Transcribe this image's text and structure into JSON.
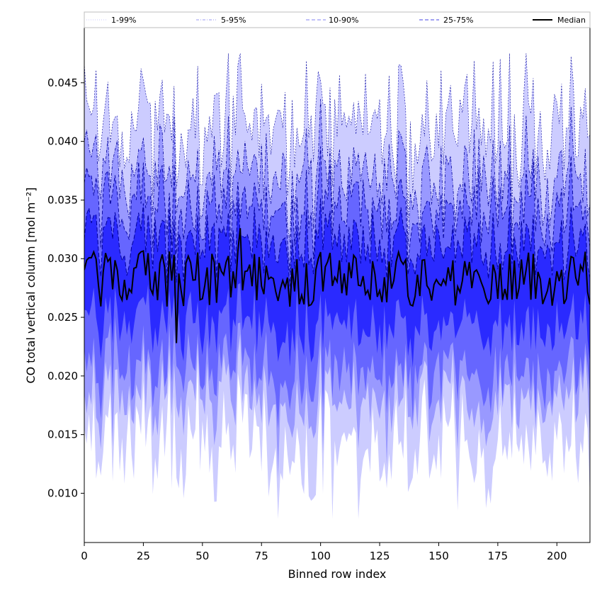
{
  "chart_data": {
    "type": "area",
    "title": "",
    "xlabel": "Binned row index",
    "ylabel": "CO total vertical column [mol m⁻²]",
    "xlim": [
      0,
      214
    ],
    "ylim": [
      0.0058,
      0.0497
    ],
    "x_ticks": [
      0,
      25,
      50,
      75,
      100,
      125,
      150,
      175,
      200
    ],
    "x_tick_labels": [
      "0",
      "25",
      "50",
      "75",
      "100",
      "125",
      "150",
      "175",
      "200"
    ],
    "y_ticks": [
      0.01,
      0.015,
      0.02,
      0.025,
      0.03,
      0.035,
      0.04,
      0.045
    ],
    "y_tick_labels": [
      "0.010",
      "0.015",
      "0.020",
      "0.025",
      "0.030",
      "0.035",
      "0.040",
      "0.045"
    ],
    "grid": false,
    "legend": {
      "placement": "top",
      "entries": [
        {
          "label": "1-99%",
          "style": "thin-dotted",
          "color": "#c8c8ff"
        },
        {
          "label": "5-95%",
          "style": "dashdot",
          "color": "#9a9af0"
        },
        {
          "label": "10-90%",
          "style": "dashed",
          "color": "#8080f0"
        },
        {
          "label": "25-75%",
          "style": "dashed",
          "color": "#4646e6"
        },
        {
          "label": "Median",
          "style": "solid",
          "color": "#000000"
        }
      ]
    },
    "band_colors": {
      "p1_p99": "#ccccff",
      "p5_p95": "#9999ff",
      "p10_p90": "#6666ff",
      "p25_p75": "#2a2aff",
      "median_line": "#000000",
      "boundary_line": "#00009c"
    },
    "bins": 215,
    "series": [
      {
        "name": "Median",
        "mean": 0.0283,
        "variation_sd": 0.0015,
        "range": [
          0.0228,
          0.0326
        ]
      },
      {
        "name": "25-75%",
        "lower_mean": 0.0245,
        "upper_mean": 0.0315
      },
      {
        "name": "10-90%",
        "lower_mean": 0.0205,
        "upper_mean": 0.0343
      },
      {
        "name": "5-95%",
        "lower_mean": 0.018,
        "upper_mean": 0.0372
      },
      {
        "name": "1-99%",
        "lower_mean": 0.014,
        "upper_mean": 0.0415,
        "max": 0.0475,
        "min": 0.0078
      }
    ]
  }
}
